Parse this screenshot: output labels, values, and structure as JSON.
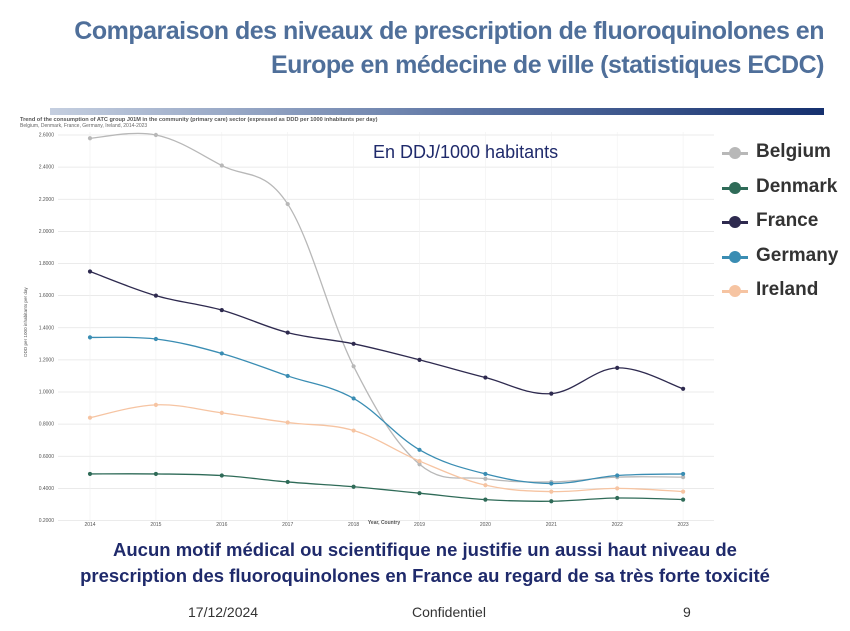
{
  "slide": {
    "title_line1": "Comparaison des niveaux de prescription de fluoroquinolones en",
    "title_line2": "Europe en médecine de ville (statistiques ECDC)",
    "conclusion_line1": "Aucun motif médical ou scientifique ne justifie un aussi haut niveau de",
    "conclusion_line2": "prescription des fluoroquinolones en France au regard de sa très forte toxicité",
    "footer_date": "17/12/2024",
    "footer_confidential": "Confidentiel",
    "footer_page": "9",
    "title_color": "#4f6f9a",
    "conclusion_color": "#1f2a6b"
  },
  "chart_data": {
    "type": "line",
    "title": "Trend of the consumption of ATC group J01M in the community (primary care) sector (expressed as DDD per 1000 inhabitants per day)",
    "subtitle": "Belgium, Denmark, France, Germany, Ireland, 2014-2023",
    "annotation": "En DDJ/1000 habitants",
    "xlabel": "Year, Country",
    "ylabel": "DDD per 1000 inhabitants per day",
    "x": [
      "2014",
      "2015",
      "2016",
      "2017",
      "2018",
      "2019",
      "2020",
      "2021",
      "2022",
      "2023"
    ],
    "yticks": [
      "0.2000",
      "0.4000",
      "0.6000",
      "0.8000",
      "1.0000",
      "1.2000",
      "1.4000",
      "1.6000",
      "1.8000",
      "2.0000",
      "2.2000",
      "2.4000",
      "2.6000"
    ],
    "ylim": [
      0.2,
      2.6
    ],
    "grid": true,
    "legend_position": "right",
    "series": [
      {
        "name": "Belgium",
        "color": "#b8b8b8",
        "values": [
          2.58,
          2.6,
          2.41,
          2.17,
          1.16,
          0.55,
          0.46,
          0.44,
          0.47,
          0.47
        ]
      },
      {
        "name": "Denmark",
        "color": "#2f6b58",
        "values": [
          0.49,
          0.49,
          0.48,
          0.44,
          0.41,
          0.37,
          0.33,
          0.32,
          0.34,
          0.33
        ]
      },
      {
        "name": "France",
        "color": "#2e2a4f",
        "values": [
          1.75,
          1.6,
          1.51,
          1.37,
          1.3,
          1.2,
          1.09,
          0.99,
          1.15,
          1.02
        ]
      },
      {
        "name": "Germany",
        "color": "#3a8db3",
        "values": [
          1.34,
          1.33,
          1.24,
          1.1,
          0.96,
          0.64,
          0.49,
          0.43,
          0.48,
          0.49
        ]
      },
      {
        "name": "Ireland",
        "color": "#f6c4a2",
        "values": [
          0.84,
          0.92,
          0.87,
          0.81,
          0.76,
          0.57,
          0.42,
          0.38,
          0.4,
          0.38
        ]
      }
    ]
  }
}
